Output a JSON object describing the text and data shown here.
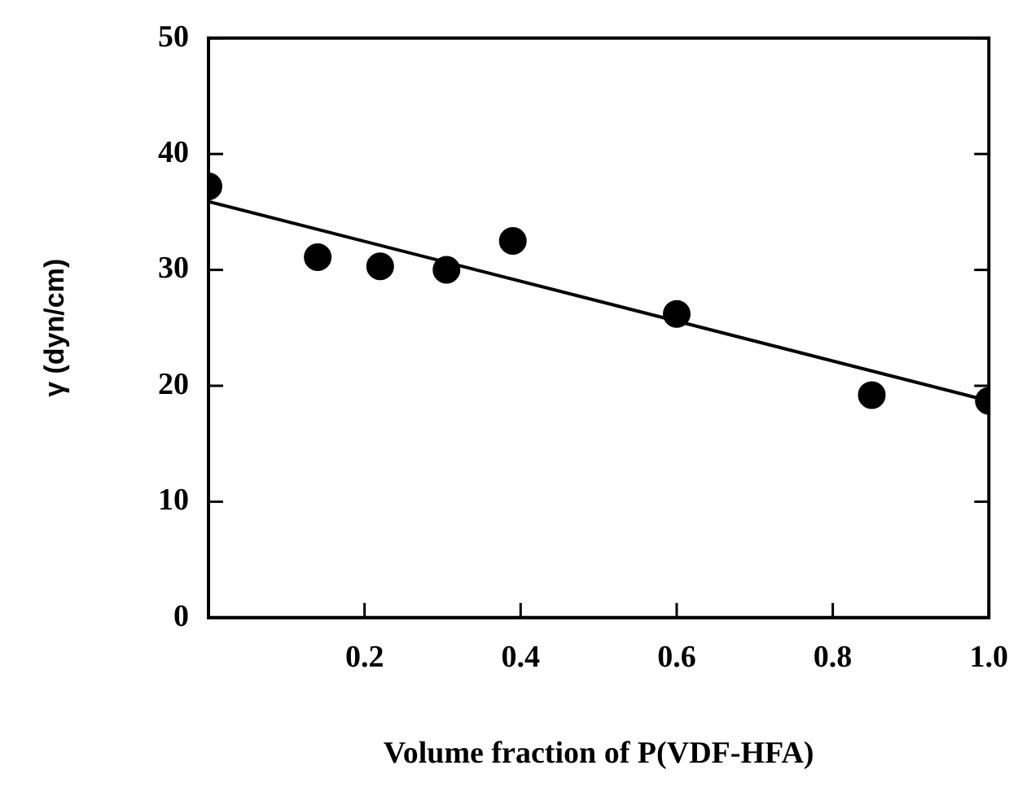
{
  "chart_data": {
    "type": "scatter",
    "xlabel": "Volume fraction of P(VDF-HFA)",
    "ylabel": "γ (dyn/cm)",
    "xlim": [
      0,
      1
    ],
    "xticks": [
      0.2,
      0.4,
      0.6,
      0.8,
      {
        "value": 1,
        "label": "1.0"
      }
    ],
    "ylim": [
      0,
      50
    ],
    "yticks": [
      0,
      10,
      20,
      30,
      40,
      50
    ],
    "marker": "circle",
    "series": [
      {
        "color": "#000000",
        "x": [
          0,
          0.14,
          0.22,
          0.305,
          0.39,
          0.6,
          0.85,
          1.0
        ],
        "values": [
          37.2,
          31.1,
          30.3,
          30.0,
          32.5,
          26.2,
          19.2,
          18.7
        ]
      },
      {
        "type": "line",
        "color": "#000000",
        "line_style": "solid",
        "marker": "none",
        "x": [
          0,
          1
        ],
        "values": [
          35.9,
          18.7
        ]
      }
    ]
  }
}
